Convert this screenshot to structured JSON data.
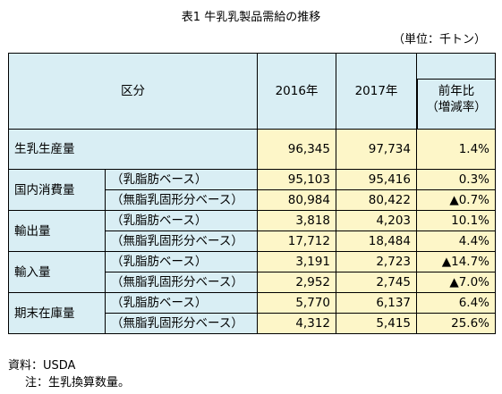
{
  "title": "表1 牛乳乳製品需給の推移",
  "unit": "（単位：千トン）",
  "header": {
    "category": "区分",
    "col2016": "2016年",
    "col2017": "2017年",
    "change_line1": "前年比",
    "change_line2": "（増減率）"
  },
  "rows": {
    "production": {
      "label": "生乳生産量",
      "v2016": "96,345",
      "v2017": "97,734",
      "change": "1.4%"
    },
    "consumption": {
      "label": "国内消費量",
      "fat": {
        "sub": "（乳脂肪ベース）",
        "v2016": "95,103",
        "v2017": "95,416",
        "change": "0.3%"
      },
      "snf": {
        "sub": "（無脂乳固形分ベース）",
        "v2016": "80,984",
        "v2017": "80,422",
        "change": "▲0.7%"
      }
    },
    "exports": {
      "label": "輸出量",
      "fat": {
        "sub": "（乳脂肪ベース）",
        "v2016": "3,818",
        "v2017": "4,203",
        "change": "10.1%"
      },
      "snf": {
        "sub": "（無脂乳固形分ベース）",
        "v2016": "17,712",
        "v2017": "18,484",
        "change": "4.4%"
      }
    },
    "imports": {
      "label": "輸入量",
      "fat": {
        "sub": "（乳脂肪ベース）",
        "v2016": "3,191",
        "v2017": "2,723",
        "change": "▲14.7%"
      },
      "snf": {
        "sub": "（無脂乳固形分ベース）",
        "v2016": "2,952",
        "v2017": "2,745",
        "change": "▲7.0%"
      }
    },
    "stocks": {
      "label": "期末在庫量",
      "fat": {
        "sub": "（乳脂肪ベース）",
        "v2016": "5,770",
        "v2017": "6,137",
        "change": "6.4%"
      },
      "snf": {
        "sub": "（無脂乳固形分ベース）",
        "v2016": "4,312",
        "v2017": "5,415",
        "change": "25.6%"
      }
    }
  },
  "notes": {
    "source": "資料：USDA",
    "note": "注：生乳換算数量。"
  }
}
